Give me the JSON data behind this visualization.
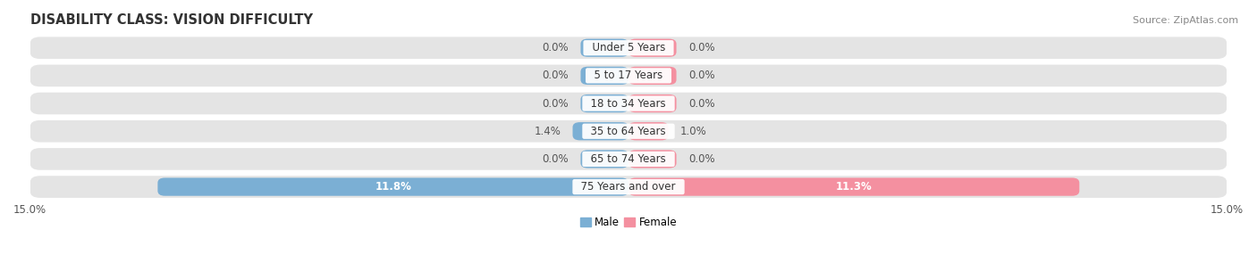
{
  "title": "DISABILITY CLASS: VISION DIFFICULTY",
  "source": "Source: ZipAtlas.com",
  "categories": [
    "Under 5 Years",
    "5 to 17 Years",
    "18 to 34 Years",
    "35 to 64 Years",
    "65 to 74 Years",
    "75 Years and over"
  ],
  "male_values": [
    0.0,
    0.0,
    0.0,
    1.4,
    0.0,
    11.8
  ],
  "female_values": [
    0.0,
    0.0,
    0.0,
    1.0,
    0.0,
    11.3
  ],
  "male_color": "#7bafd4",
  "female_color": "#f490a0",
  "bar_bg_color": "#e4e4e4",
  "max_val": 15.0,
  "zero_stub": 1.2,
  "title_fontsize": 10.5,
  "source_fontsize": 8,
  "axis_label_fontsize": 8.5,
  "category_fontsize": 8.5,
  "value_fontsize": 8.5
}
